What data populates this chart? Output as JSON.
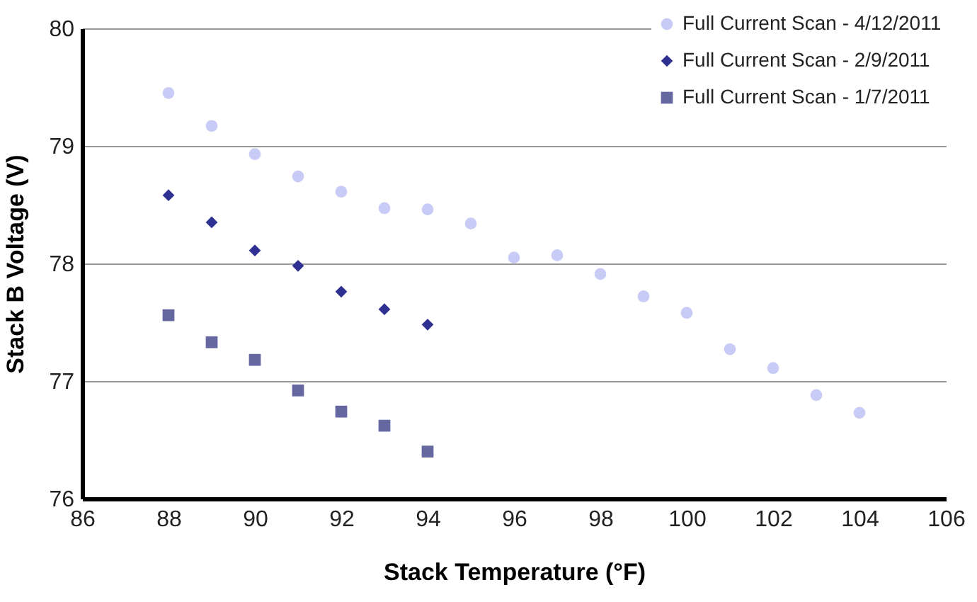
{
  "chart_data": {
    "type": "scatter",
    "xlabel": "Stack Temperature (°F)",
    "ylabel": "Stack B Voltage (V)",
    "xlim": [
      86,
      106
    ],
    "xticks": [
      86,
      88,
      90,
      92,
      94,
      96,
      98,
      100,
      102,
      104,
      106
    ],
    "ylim": [
      76,
      80
    ],
    "yticks": [
      76,
      77,
      78,
      79,
      80
    ],
    "grid": "y",
    "legend": "top right",
    "series": [
      {
        "name": "Full Current Scan - 4/12/2011",
        "color": "#c8cbf5",
        "marker": "circle",
        "x": [
          88,
          89,
          90,
          91,
          92,
          93,
          94,
          95,
          96,
          97,
          98,
          99,
          100,
          101,
          102,
          103,
          104
        ],
        "values": [
          79.45,
          79.17,
          78.93,
          78.74,
          78.61,
          78.47,
          78.46,
          78.34,
          78.05,
          78.07,
          77.91,
          77.72,
          77.58,
          77.27,
          77.11,
          76.88,
          76.73
        ]
      },
      {
        "name": "Full Current Scan - 2/9/2011",
        "color": "#2e3192",
        "marker": "diamond",
        "x": [
          88,
          89,
          90,
          91,
          92,
          93,
          94
        ],
        "values": [
          78.58,
          78.35,
          78.11,
          77.98,
          77.76,
          77.61,
          77.48
        ]
      },
      {
        "name": "Full Current Scan - 1/7/2011",
        "color": "#6467a0",
        "marker": "square",
        "x": [
          88,
          89,
          90,
          91,
          92,
          93,
          94
        ],
        "values": [
          77.56,
          77.33,
          77.18,
          76.92,
          76.74,
          76.62,
          76.4
        ]
      }
    ]
  }
}
